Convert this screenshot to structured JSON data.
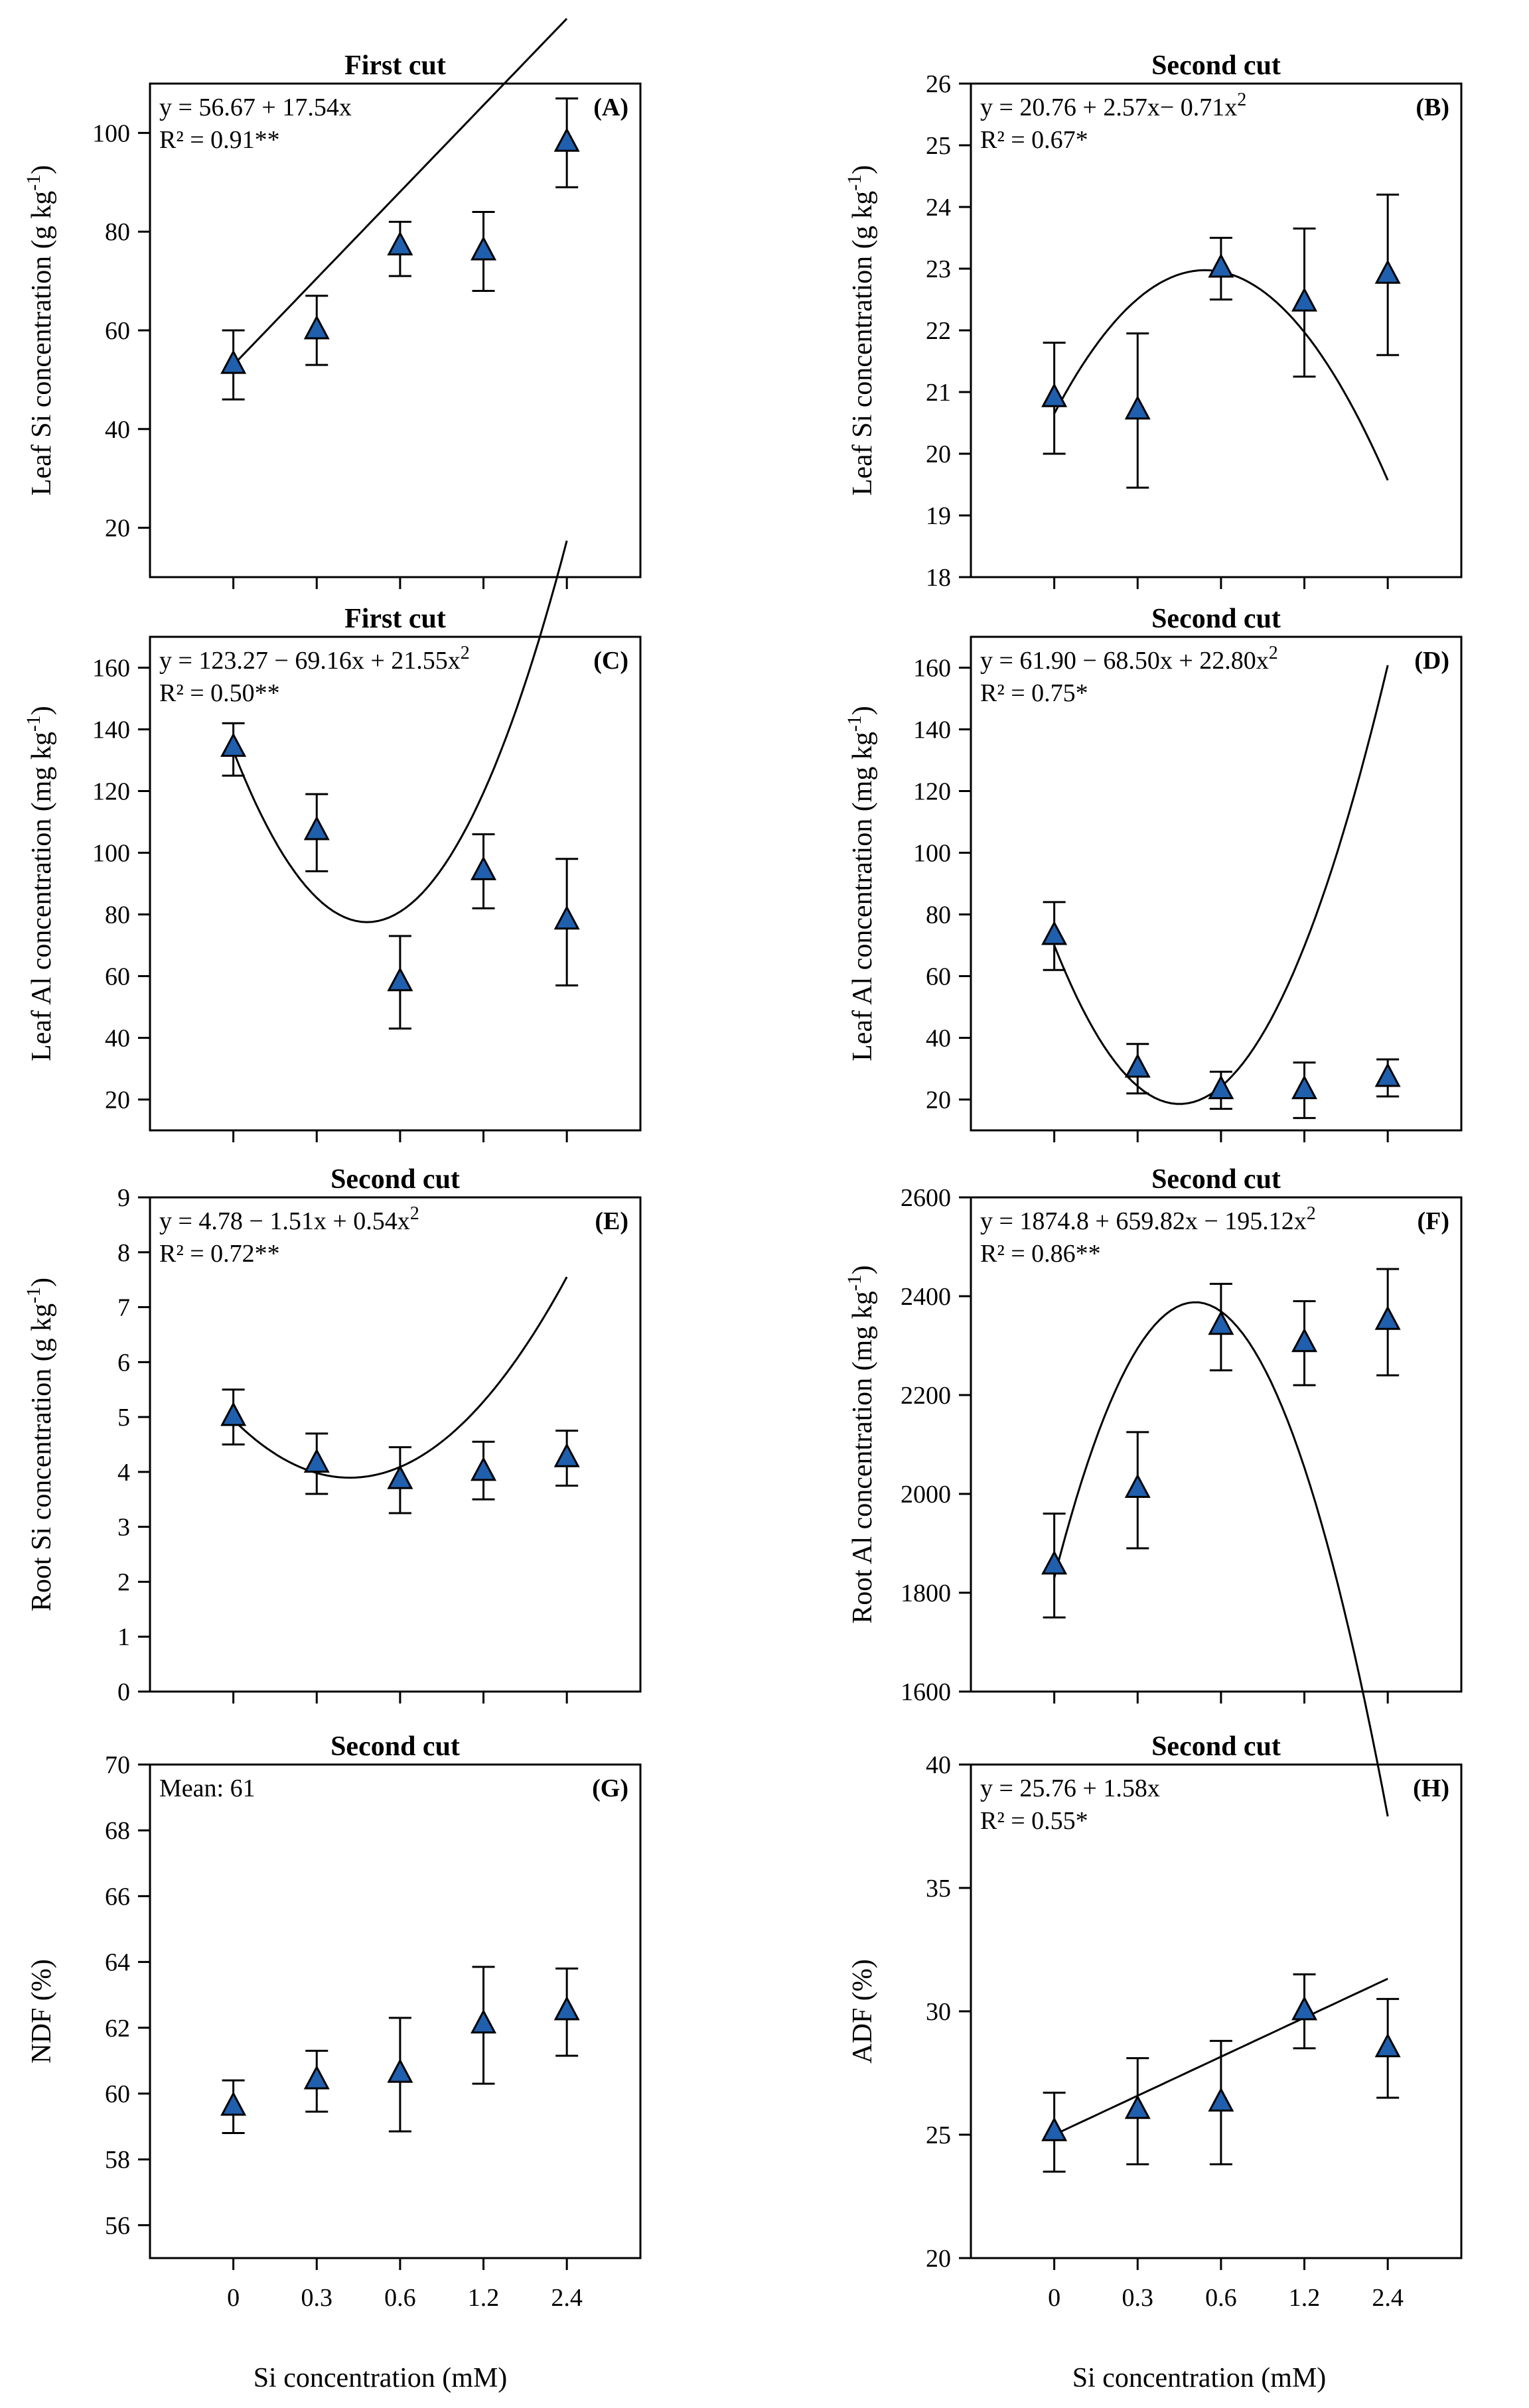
{
  "figure": {
    "x_axis_label": "Si concentration (mM)",
    "categories": [
      "0",
      "0.3",
      "0.6",
      "1.2",
      "2.4"
    ]
  },
  "chart_data": [
    {
      "id": "A",
      "type": "scatter",
      "title": "First cut",
      "panel_label": "(A)",
      "ylabel": "Leaf Si concentration (g kg",
      "ylabel_sup": "-1",
      "ylabel_tail": ")",
      "ylim": [
        10,
        110
      ],
      "yticks": [
        20,
        40,
        60,
        80,
        100
      ],
      "categories": [
        "0",
        "0.3",
        "0.6",
        "1.2",
        "2.4"
      ],
      "values": [
        53,
        60,
        77,
        76,
        98
      ],
      "err_upper": [
        60,
        67,
        82,
        84,
        107
      ],
      "err_lower": [
        46,
        53,
        71,
        68,
        89
      ],
      "fit": [
        56.67,
        17.54,
        0
      ],
      "fit_start": 53,
      "equation": [
        {
          "t": "y = 56.67 + 17.54x"
        }
      ],
      "r2": "R² = 0.91**",
      "show_x_labels": false
    },
    {
      "id": "B",
      "type": "scatter",
      "title": "Second cut",
      "panel_label": "(B)",
      "ylabel": "Leaf Si concentration (g kg",
      "ylabel_sup": "-1",
      "ylabel_tail": ")",
      "ylim": [
        18,
        26
      ],
      "yticks": [
        18,
        19,
        20,
        21,
        22,
        23,
        24,
        25,
        26
      ],
      "categories": [
        "0",
        "0.3",
        "0.6",
        "1.2",
        "2.4"
      ],
      "values": [
        20.9,
        20.7,
        23.0,
        22.45,
        22.9
      ],
      "err_upper": [
        21.8,
        21.95,
        23.5,
        23.65,
        24.2
      ],
      "err_lower": [
        20.0,
        19.45,
        22.5,
        21.25,
        21.6
      ],
      "fit": [
        20.76,
        2.57,
        -0.71
      ],
      "fit_start": 20.65,
      "equation": [
        {
          "t": "y = 20.76 + 2.57x− 0.71x"
        },
        {
          "t": "2",
          "sup": true
        }
      ],
      "r2": "R² = 0.67*",
      "show_x_labels": false
    },
    {
      "id": "C",
      "type": "scatter",
      "title": "First cut",
      "panel_label": "(C)",
      "ylabel": "Leaf Al concentration (mg kg",
      "ylabel_sup": "-1",
      "ylabel_tail": ")",
      "ylim": [
        10,
        170
      ],
      "yticks": [
        20,
        40,
        60,
        80,
        100,
        120,
        140,
        160
      ],
      "categories": [
        "0",
        "0.3",
        "0.6",
        "1.2",
        "2.4"
      ],
      "values": [
        134,
        107,
        58,
        94,
        78
      ],
      "err_upper": [
        142,
        119,
        73,
        106,
        98
      ],
      "err_lower": [
        125,
        94,
        43,
        82,
        57
      ],
      "fit": [
        123.27,
        -69.16,
        21.55
      ],
      "fit_start": 133,
      "equation": [
        {
          "t": "y = 123.27 − 69.16x + 21.55x"
        },
        {
          "t": "2",
          "sup": true
        }
      ],
      "r2": "R² = 0.50**",
      "show_x_labels": false
    },
    {
      "id": "D",
      "type": "scatter",
      "title": "Second cut",
      "panel_label": "(D)",
      "ylabel": "Leaf Al concentration (mg kg",
      "ylabel_sup": "-1",
      "ylabel_tail": ")",
      "ylim": [
        10,
        170
      ],
      "yticks": [
        20,
        40,
        60,
        80,
        100,
        120,
        140,
        160
      ],
      "categories": [
        "0",
        "0.3",
        "0.6",
        "1.2",
        "2.4"
      ],
      "values": [
        73,
        30,
        23,
        23,
        27
      ],
      "err_upper": [
        84,
        38,
        29,
        32,
        33
      ],
      "err_lower": [
        62,
        22,
        17,
        14,
        21
      ],
      "fit": [
        61.9,
        -68.5,
        22.8
      ],
      "fit_start": 70,
      "equation": [
        {
          "t": "y = 61.90 − 68.50x + 22.80x"
        },
        {
          "t": "2",
          "sup": true
        }
      ],
      "r2": "R² = 0.75*",
      "show_x_labels": false
    },
    {
      "id": "E",
      "type": "scatter",
      "title": "Second cut",
      "panel_label": "(E)",
      "ylabel": "Root Si concentration (g kg",
      "ylabel_sup": "-1",
      "ylabel_tail": ")",
      "ylim": [
        0,
        9
      ],
      "yticks": [
        0,
        1,
        2,
        3,
        4,
        5,
        6,
        7,
        8,
        9
      ],
      "categories": [
        "0",
        "0.3",
        "0.6",
        "1.2",
        "2.4"
      ],
      "values": [
        5.0,
        4.15,
        3.85,
        4.0,
        4.25
      ],
      "err_upper": [
        5.5,
        4.7,
        4.45,
        4.55,
        4.75
      ],
      "err_lower": [
        4.5,
        3.6,
        3.25,
        3.5,
        3.75
      ],
      "fit": [
        4.78,
        -1.51,
        0.54
      ],
      "fit_start": 4.95,
      "equation": [
        {
          "t": "y = 4.78 − 1.51x + 0.54x"
        },
        {
          "t": "2",
          "sup": true
        }
      ],
      "r2": "R² = 0.72**",
      "show_x_labels": false
    },
    {
      "id": "F",
      "type": "scatter",
      "title": "Second cut",
      "panel_label": "(F)",
      "ylabel": "Root Al concentration (mg kg",
      "ylabel_sup": "-1",
      "ylabel_tail": ")",
      "ylim": [
        1600,
        2600
      ],
      "yticks": [
        1600,
        1800,
        2000,
        2200,
        2400,
        2600
      ],
      "categories": [
        "0",
        "0.3",
        "0.6",
        "1.2",
        "2.4"
      ],
      "values": [
        1855,
        2010,
        2340,
        2305,
        2350
      ],
      "err_upper": [
        1960,
        2125,
        2425,
        2390,
        2455
      ],
      "err_lower": [
        1750,
        1890,
        2250,
        2220,
        2240
      ],
      "fit": [
        1874.8,
        659.82,
        -195.12
      ],
      "fit_start": 1830,
      "equation": [
        {
          "t": "y = 1874.8 + 659.82x − 195.12x"
        },
        {
          "t": "2",
          "sup": true
        }
      ],
      "r2": "R² = 0.86**",
      "show_x_labels": false
    },
    {
      "id": "G",
      "type": "scatter",
      "title": "Second cut",
      "panel_label": "(G)",
      "ylabel": "NDF (%)",
      "ylabel_sup": "",
      "ylabel_tail": "",
      "ylim": [
        55,
        70
      ],
      "yticks": [
        56,
        58,
        60,
        62,
        64,
        66,
        68,
        70
      ],
      "categories": [
        "0",
        "0.3",
        "0.6",
        "1.2",
        "2.4"
      ],
      "values": [
        59.6,
        60.4,
        60.6,
        62.1,
        62.5
      ],
      "err_upper": [
        60.4,
        61.3,
        62.3,
        63.85,
        63.8
      ],
      "err_lower": [
        58.8,
        59.45,
        58.85,
        60.3,
        61.15
      ],
      "fit": null,
      "fit_start": null,
      "equation": [
        {
          "t": "Mean: 61"
        }
      ],
      "r2": "",
      "show_x_labels": true
    },
    {
      "id": "H",
      "type": "scatter",
      "title": "Second cut",
      "panel_label": "(H)",
      "ylabel": "ADF (%)",
      "ylabel_sup": "",
      "ylabel_tail": "",
      "ylim": [
        20,
        40
      ],
      "yticks": [
        20,
        25,
        30,
        35,
        40
      ],
      "categories": [
        "0",
        "0.3",
        "0.6",
        "1.2",
        "2.4"
      ],
      "values": [
        25.1,
        26.0,
        26.3,
        30.0,
        28.5
      ],
      "err_upper": [
        26.7,
        28.1,
        28.8,
        31.5,
        30.5
      ],
      "err_lower": [
        23.5,
        23.8,
        23.8,
        28.5,
        26.5
      ],
      "fit": [
        25.76,
        1.58,
        0
      ],
      "fit_start": 25.0,
      "equation": [
        {
          "t": "y = 25.76 + 1.58x"
        }
      ],
      "r2": "R² = 0.55*",
      "show_x_labels": true
    }
  ],
  "colors": {
    "marker_fill": "#1f5fae",
    "marker_stroke": "#000000",
    "axis": "#000000",
    "line": "#000000"
  }
}
